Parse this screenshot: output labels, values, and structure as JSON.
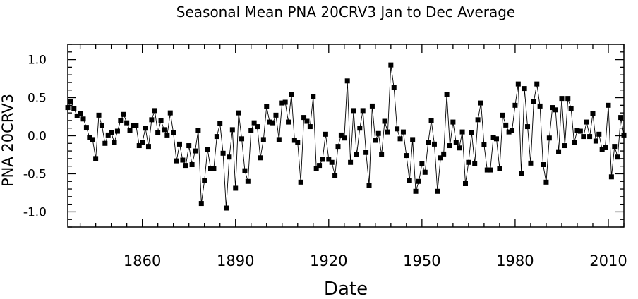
{
  "chart_data": {
    "type": "line",
    "title": "Seasonal Mean PNA 20CRV3 Jan to Dec Average",
    "xlabel": "Date",
    "ylabel": "PNA 20CRV3",
    "xlim": [
      1836,
      2015
    ],
    "ylim": [
      -1.2,
      1.2
    ],
    "xticks": [
      1860,
      1890,
      1920,
      1950,
      1980,
      2010
    ],
    "xticks_minor_step": 5,
    "yticks": [
      -1.0,
      -0.5,
      0.0,
      0.5,
      1.0
    ],
    "ytick_labels": [
      "-1.0",
      "-0.5",
      "0.0",
      "0.5",
      "1.0"
    ],
    "yticks_minor_step": 0.1,
    "grid": false,
    "marker": "square",
    "x": [
      1836,
      1837,
      1838,
      1839,
      1840,
      1841,
      1842,
      1843,
      1844,
      1845,
      1846,
      1847,
      1848,
      1849,
      1850,
      1851,
      1852,
      1853,
      1854,
      1855,
      1856,
      1857,
      1858,
      1859,
      1860,
      1861,
      1862,
      1863,
      1864,
      1865,
      1866,
      1867,
      1868,
      1869,
      1870,
      1871,
      1872,
      1873,
      1874,
      1875,
      1876,
      1877,
      1878,
      1879,
      1880,
      1881,
      1882,
      1883,
      1884,
      1885,
      1886,
      1887,
      1888,
      1889,
      1890,
      1891,
      1892,
      1893,
      1894,
      1895,
      1896,
      1897,
      1898,
      1899,
      1900,
      1901,
      1902,
      1903,
      1904,
      1905,
      1906,
      1907,
      1908,
      1909,
      1910,
      1911,
      1912,
      1913,
      1914,
      1915,
      1916,
      1917,
      1918,
      1919,
      1920,
      1921,
      1922,
      1923,
      1924,
      1925,
      1926,
      1927,
      1928,
      1929,
      1930,
      1931,
      1932,
      1933,
      1934,
      1935,
      1936,
      1937,
      1938,
      1939,
      1940,
      1941,
      1942,
      1943,
      1944,
      1945,
      1946,
      1947,
      1948,
      1949,
      1950,
      1951,
      1952,
      1953,
      1954,
      1955,
      1956,
      1957,
      1958,
      1959,
      1960,
      1961,
      1962,
      1963,
      1964,
      1965,
      1966,
      1967,
      1968,
      1969,
      1970,
      1971,
      1972,
      1973,
      1974,
      1975,
      1976,
      1977,
      1978,
      1979,
      1980,
      1981,
      1982,
      1983,
      1984,
      1985,
      1986,
      1987,
      1988,
      1989,
      1990,
      1991,
      1992,
      1993,
      1994,
      1995,
      1996,
      1997,
      1998,
      1999,
      2000,
      2001,
      2002,
      2003,
      2004,
      2005,
      2006,
      2007,
      2008,
      2009,
      2010,
      2011,
      2012,
      2013,
      2014,
      2015
    ],
    "y": [
      0.37,
      0.45,
      0.36,
      0.26,
      0.29,
      0.22,
      0.11,
      -0.02,
      -0.05,
      -0.3,
      0.27,
      0.13,
      -0.1,
      0.01,
      0.04,
      -0.09,
      0.06,
      0.2,
      0.28,
      0.17,
      0.07,
      0.13,
      0.13,
      -0.13,
      -0.09,
      0.1,
      -0.14,
      0.21,
      0.33,
      0.04,
      0.2,
      0.08,
      0.01,
      0.3,
      0.04,
      -0.33,
      -0.11,
      -0.32,
      -0.39,
      -0.13,
      -0.38,
      -0.2,
      0.07,
      -0.89,
      -0.59,
      -0.18,
      -0.43,
      -0.43,
      -0.01,
      0.16,
      -0.23,
      -0.95,
      -0.28,
      0.08,
      -0.69,
      0.3,
      -0.04,
      -0.46,
      -0.6,
      0.07,
      0.17,
      0.12,
      -0.29,
      -0.05,
      0.38,
      0.18,
      0.17,
      0.27,
      -0.05,
      0.43,
      0.44,
      0.18,
      0.54,
      -0.06,
      -0.09,
      -0.61,
      0.24,
      0.19,
      0.12,
      0.51,
      -0.43,
      -0.39,
      -0.31,
      0.02,
      -0.31,
      -0.35,
      -0.52,
      -0.14,
      0.01,
      -0.03,
      0.72,
      -0.35,
      0.33,
      -0.25,
      0.1,
      0.33,
      -0.22,
      -0.65,
      0.39,
      -0.06,
      0.03,
      -0.25,
      0.19,
      0.05,
      0.93,
      0.63,
      0.09,
      -0.04,
      0.05,
      -0.26,
      -0.59,
      -0.05,
      -0.73,
      -0.6,
      -0.37,
      -0.48,
      -0.09,
      0.2,
      -0.11,
      -0.73,
      -0.29,
      -0.24,
      0.54,
      -0.13,
      0.18,
      -0.09,
      -0.16,
      0.05,
      -0.63,
      -0.35,
      0.04,
      -0.37,
      0.21,
      0.43,
      -0.12,
      -0.45,
      -0.45,
      -0.02,
      -0.04,
      -0.43,
      0.27,
      0.14,
      0.05,
      0.07,
      0.4,
      0.68,
      -0.5,
      0.62,
      0.12,
      -0.36,
      0.45,
      0.68,
      0.39,
      -0.38,
      -0.61,
      -0.03,
      0.37,
      0.34,
      -0.21,
      0.49,
      -0.13,
      0.49,
      0.36,
      -0.09,
      0.07,
      0.06,
      -0.01,
      0.18,
      -0.01,
      0.29,
      -0.07,
      0.02,
      -0.18,
      -0.15,
      0.4,
      -0.54,
      -0.14,
      -0.28,
      0.24,
      0.01
    ]
  }
}
